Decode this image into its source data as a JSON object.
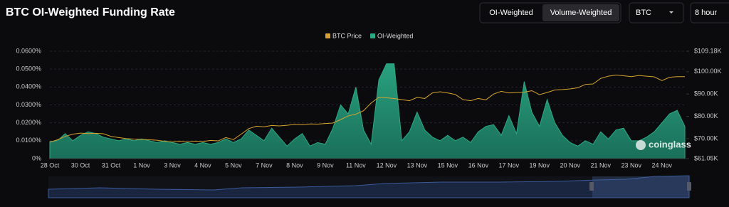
{
  "header": {
    "title": "BTC OI-Weighted Funding Rate",
    "tabs": [
      "OI-Weighted",
      "Volume-Weighted"
    ],
    "symbol": "BTC",
    "interval": "8 hour"
  },
  "watermark": "coinglass",
  "chart_data": {
    "type": "combo",
    "categories": [
      "28 Oct",
      null,
      null,
      null,
      "30 Oct",
      null,
      null,
      null,
      "31 Oct",
      null,
      null,
      null,
      "1 Nov",
      null,
      null,
      null,
      "3 Nov",
      null,
      null,
      null,
      "4 Nov",
      null,
      null,
      null,
      "5 Nov",
      null,
      null,
      null,
      "7 Nov",
      null,
      null,
      null,
      "8 Nov",
      null,
      null,
      null,
      "9 Nov",
      null,
      null,
      null,
      "11 Nov",
      null,
      null,
      null,
      "12 Nov",
      null,
      null,
      null,
      "13 Nov",
      null,
      null,
      null,
      "15 Nov",
      null,
      null,
      null,
      "16 Nov",
      null,
      null,
      null,
      "17 Nov",
      null,
      null,
      null,
      "19 Nov",
      null,
      null,
      null,
      "20 Nov",
      null,
      null,
      null,
      "21 Nov",
      null,
      null,
      null,
      "23 Nov",
      null,
      null,
      null,
      "24 Nov",
      null,
      null,
      null
    ],
    "series": [
      {
        "name": "BTC Price",
        "type": "line",
        "axis": "y2",
        "color": "#d6a22e",
        "values": [
          68400,
          69500,
          71000,
          72000,
          72500,
          72300,
          72400,
          72200,
          71000,
          70500,
          70000,
          69800,
          69700,
          69500,
          69300,
          68800,
          68500,
          68800,
          68500,
          68900,
          68700,
          69200,
          69000,
          70500,
          69600,
          72000,
          74500,
          75600,
          75300,
          75900,
          75700,
          76000,
          76400,
          76200,
          76600,
          76500,
          76800,
          77000,
          78500,
          80200,
          81000,
          82500,
          86000,
          88500,
          88300,
          88000,
          87500,
          87000,
          88500,
          88000,
          90500,
          91000,
          90500,
          89800,
          87500,
          87000,
          88000,
          87400,
          90000,
          91200,
          90500,
          90700,
          90800,
          91500,
          89700,
          90700,
          91800,
          92000,
          92300,
          92800,
          94300,
          94500,
          97000,
          98000,
          98500,
          98200,
          97800,
          98300,
          98000,
          97700,
          96000,
          97500,
          97800,
          97800
        ]
      },
      {
        "name": "OI-Weighted",
        "type": "area",
        "color": "#2aa985",
        "values": [
          0.0095,
          0.01,
          0.014,
          0.01,
          0.013,
          0.015,
          0.014,
          0.012,
          0.011,
          0.01,
          0.011,
          0.01,
          0.011,
          0.01,
          0.009,
          0.01,
          0.009,
          0.008,
          0.009,
          0.008,
          0.009,
          0.008,
          0.009,
          0.011,
          0.009,
          0.011,
          0.016,
          0.013,
          0.01,
          0.017,
          0.012,
          0.007,
          0.011,
          0.014,
          0.007,
          0.009,
          0.008,
          0.017,
          0.03,
          0.025,
          0.04,
          0.016,
          0.008,
          0.044,
          0.053,
          0.053,
          0.01,
          0.015,
          0.026,
          0.016,
          0.012,
          0.01,
          0.013,
          0.01,
          0.012,
          0.009,
          0.015,
          0.018,
          0.019,
          0.013,
          0.024,
          0.014,
          0.043,
          0.026,
          0.018,
          0.033,
          0.02,
          0.013,
          0.009,
          0.007,
          0.01,
          0.008,
          0.015,
          0.011,
          0.016,
          0.017,
          0.01,
          0.01,
          0.012,
          0.015,
          0.02,
          0.025,
          0.027,
          0.018
        ]
      }
    ],
    "ylim": [
      0,
      0.06
    ],
    "yticks": [
      {
        "value": 0,
        "label": "0%"
      },
      {
        "value": 0.01,
        "label": "0.0100%"
      },
      {
        "value": 0.02,
        "label": "0.0200%"
      },
      {
        "value": 0.03,
        "label": "0.0300%"
      },
      {
        "value": 0.04,
        "label": "0.0400%"
      },
      {
        "value": 0.05,
        "label": "0.0500%"
      },
      {
        "value": 0.06,
        "label": "0.0600%"
      }
    ],
    "y2lim": [
      61050,
      109180
    ],
    "y2ticks": [
      {
        "value": 61050,
        "label": "$61.05K"
      },
      {
        "value": 70000,
        "label": "$70.00K"
      },
      {
        "value": 80000,
        "label": "$80.00K"
      },
      {
        "value": 90000,
        "label": "$90.00K"
      },
      {
        "value": 100000,
        "label": "$100.00K"
      },
      {
        "value": 109180,
        "label": "$109.18K"
      }
    ],
    "grid": true
  }
}
